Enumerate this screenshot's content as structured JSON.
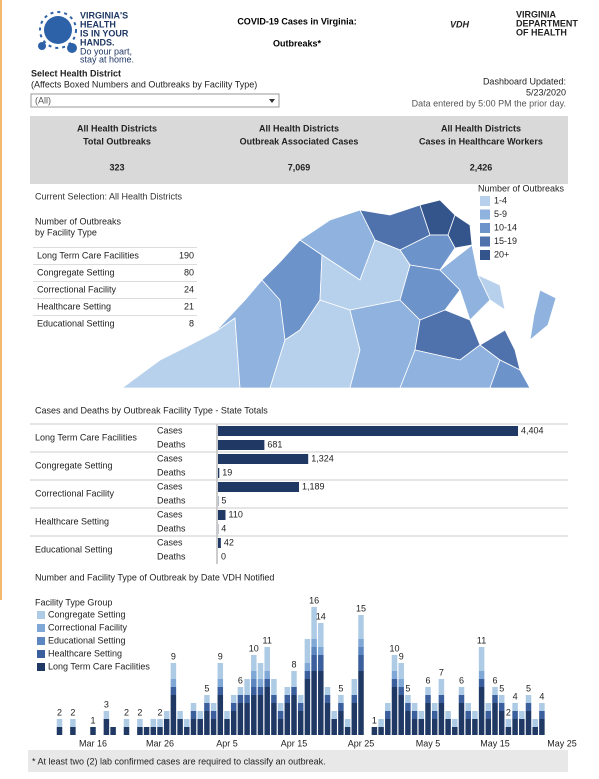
{
  "header": {
    "logo_lines": [
      "VIRGINIA'S",
      "HEALTH",
      "IS IN YOUR",
      "HANDS."
    ],
    "logo_tagline": [
      "Do your part,",
      "stay at home."
    ],
    "title_lines": [
      "COVID-19 Cases in Virginia:",
      "Outbreaks*"
    ],
    "vdh": "VDH",
    "vdh_lines": [
      "VIRGINIA",
      "DEPARTMENT",
      "OF HEALTH"
    ]
  },
  "filter": {
    "label": "Select Health District",
    "note": "(Affects Boxed Numbers and Outbreaks by Facility Type)",
    "value": "(All)"
  },
  "updated": {
    "label": "Dashboard Updated:",
    "date": "5/23/2020",
    "note": "Data entered by 5:00 PM the prior day."
  },
  "kpis": [
    {
      "lines": [
        "All Health Districts",
        "Total Outbreaks"
      ],
      "value": "323"
    },
    {
      "lines": [
        "All Health Districts",
        "Outbreak Associated Cases"
      ],
      "value": "7,069"
    },
    {
      "lines": [
        "All Health Districts",
        "Cases in Healthcare Workers"
      ],
      "value": "2,426"
    }
  ],
  "selection": "Current Selection: All Health Districts",
  "facility_table": {
    "title_lines": [
      "Number of Outbreaks",
      "by Facility Type"
    ],
    "rows": [
      [
        "Long Term Care Facilities",
        190
      ],
      [
        "Congregate Setting",
        80
      ],
      [
        "Correctional Facility",
        24
      ],
      [
        "Healthcare Setting",
        21
      ],
      [
        "Educational Setting",
        8
      ]
    ]
  },
  "map": {
    "legend_title": "Number of Outbreaks",
    "legend": [
      {
        "label": "1-4",
        "color": "#b7d1ec"
      },
      {
        "label": "5-9",
        "color": "#8fb2de"
      },
      {
        "label": "10-14",
        "color": "#6d93cb"
      },
      {
        "label": "15-19",
        "color": "#4f72ac"
      },
      {
        "label": "20+",
        "color": "#34558b"
      }
    ]
  },
  "chart_data": [
    {
      "type": "bar",
      "orientation": "horizontal",
      "title": "Cases and Deaths by Outbreak Facility Type - State Totals",
      "categories": [
        "Long Term Care Facilities",
        "Congregate Setting",
        "Correctional Facility",
        "Healthcare Setting",
        "Educational Setting"
      ],
      "series": [
        {
          "name": "Cases",
          "color": "#1f3864",
          "values": [
            4404,
            1324,
            1189,
            110,
            42
          ],
          "value_labels": [
            "4,404",
            "1,324",
            "1,189",
            "110",
            "42"
          ]
        },
        {
          "name": "Deaths",
          "color": "#1f3864",
          "values": [
            681,
            19,
            5,
            4,
            0
          ]
        }
      ]
    },
    {
      "type": "stacked_bar",
      "title": "Number and Facility Type of Outbreak by Date VDH Notified",
      "legend_title": "Facility Type Group",
      "categories": [
        null,
        null,
        null,
        null,
        null,
        null,
        "Mar 16",
        null,
        null,
        null,
        null,
        null,
        null,
        null,
        null,
        null,
        "Mar 26",
        null,
        null,
        null,
        null,
        null,
        null,
        null,
        null,
        null,
        "Apr 5",
        null,
        null,
        null,
        null,
        null,
        null,
        null,
        null,
        null,
        "Apr 15",
        null,
        null,
        null,
        null,
        null,
        null,
        null,
        null,
        null,
        "Apr 25",
        null,
        null,
        null,
        null,
        null,
        null,
        null,
        null,
        null,
        "May 5",
        null,
        null,
        null,
        null,
        null,
        null,
        null,
        null,
        null,
        "May 15",
        null,
        null,
        null,
        null,
        null,
        null,
        null,
        null,
        null,
        "May 25"
      ],
      "series": [
        {
          "name": "Congregate Setting",
          "color": "#aecbe6",
          "values": [
            0,
            1,
            0,
            1,
            0,
            0,
            0,
            0,
            1,
            0,
            0,
            1,
            0,
            1,
            0,
            1,
            1,
            1,
            2,
            1,
            1,
            1,
            1,
            1,
            1,
            2,
            1,
            1,
            1,
            2,
            2,
            2,
            3,
            2,
            1,
            1,
            2,
            1,
            3,
            4,
            3,
            1,
            1,
            1,
            1,
            2,
            3,
            0,
            0,
            1,
            1,
            2,
            2,
            1,
            1,
            1,
            1,
            1,
            2,
            1,
            1,
            1,
            1,
            1,
            3,
            1,
            1,
            1,
            1,
            1,
            1,
            1,
            1,
            1,
            0,
            0,
            0
          ]
        },
        {
          "name": "Correctional Facility",
          "color": "#7fa8d6",
          "values": [
            0,
            0,
            0,
            0,
            0,
            0,
            0,
            0,
            0,
            0,
            0,
            0,
            0,
            0,
            0,
            0,
            0,
            0,
            1,
            0,
            0,
            0,
            0,
            0,
            0,
            1,
            0,
            0,
            0,
            0,
            1,
            1,
            1,
            0,
            0,
            0,
            0,
            0,
            1,
            1,
            1,
            0,
            0,
            0,
            0,
            0,
            1,
            0,
            0,
            0,
            0,
            1,
            1,
            0,
            0,
            0,
            0,
            0,
            0,
            0,
            0,
            0,
            0,
            0,
            1,
            0,
            0,
            0,
            0,
            0,
            0,
            0,
            0,
            0,
            0,
            0,
            0
          ]
        },
        {
          "name": "Educational Setting",
          "color": "#5b86c0",
          "values": [
            0,
            0,
            0,
            0,
            0,
            0,
            0,
            0,
            0,
            0,
            0,
            0,
            0,
            0,
            0,
            0,
            0,
            0,
            0,
            0,
            0,
            0,
            0,
            0,
            0,
            0,
            0,
            0,
            0,
            0,
            1,
            0,
            0,
            0,
            0,
            0,
            0,
            0,
            0,
            1,
            0,
            0,
            0,
            0,
            0,
            0,
            1,
            0,
            0,
            0,
            0,
            0,
            0,
            0,
            0,
            0,
            0,
            0,
            0,
            0,
            0,
            0,
            0,
            0,
            0,
            0,
            0,
            0,
            0,
            0,
            0,
            0,
            0,
            0,
            0,
            0,
            0
          ]
        },
        {
          "name": "Healthcare Setting",
          "color": "#3b5f9c",
          "values": [
            0,
            0,
            0,
            0,
            0,
            0,
            0,
            0,
            0,
            0,
            0,
            0,
            0,
            0,
            0,
            0,
            0,
            0,
            1,
            0,
            0,
            1,
            0,
            1,
            1,
            1,
            0,
            1,
            1,
            1,
            1,
            1,
            1,
            1,
            1,
            1,
            1,
            1,
            1,
            2,
            2,
            1,
            0,
            1,
            0,
            1,
            2,
            0,
            0,
            0,
            1,
            1,
            1,
            1,
            1,
            0,
            1,
            1,
            1,
            0,
            0,
            1,
            1,
            0,
            1,
            1,
            1,
            1,
            0,
            1,
            0,
            1,
            0,
            1,
            0,
            0,
            0
          ]
        },
        {
          "name": "Long Term Care Facilities",
          "color": "#1f3864",
          "values": [
            0,
            1,
            0,
            1,
            0,
            0,
            1,
            0,
            2,
            1,
            0,
            1,
            0,
            1,
            1,
            1,
            1,
            2,
            5,
            2,
            1,
            2,
            2,
            3,
            2,
            5,
            2,
            3,
            4,
            4,
            5,
            5,
            6,
            4,
            2,
            4,
            5,
            3,
            7,
            8,
            8,
            4,
            2,
            3,
            1,
            4,
            8,
            0,
            1,
            1,
            2,
            6,
            5,
            3,
            2,
            2,
            4,
            2,
            4,
            2,
            1,
            4,
            2,
            2,
            6,
            2,
            4,
            3,
            1,
            2,
            2,
            3,
            1,
            2,
            0,
            0,
            0
          ]
        }
      ],
      "totals": [
        null,
        2,
        null,
        2,
        null,
        null,
        1,
        null,
        3,
        null,
        null,
        2,
        null,
        2,
        null,
        null,
        2,
        null,
        9,
        null,
        null,
        null,
        null,
        5,
        null,
        9,
        null,
        null,
        6,
        null,
        10,
        null,
        11,
        null,
        null,
        null,
        8,
        null,
        null,
        16,
        14,
        null,
        null,
        5,
        null,
        null,
        15,
        null,
        1,
        null,
        null,
        10,
        9,
        5,
        null,
        null,
        6,
        null,
        7,
        null,
        null,
        6,
        null,
        null,
        11,
        null,
        6,
        5,
        2,
        4,
        null,
        5,
        null,
        4,
        null,
        null,
        null
      ]
    }
  ],
  "footnote": "* At least two (2) lab confirmed cases are required to classify an outbreak."
}
